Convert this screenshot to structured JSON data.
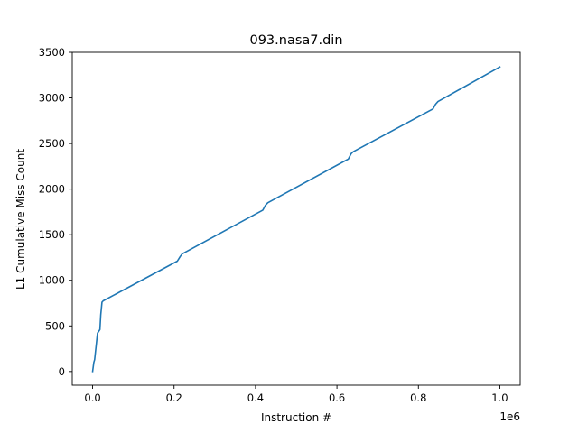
{
  "chart_data": {
    "type": "line",
    "title": "093.nasa7.din",
    "xlabel": "Instruction #",
    "ylabel": "L1 Cumulative Miss Count",
    "x_offset_label": "1e6",
    "xlim": [
      -50000,
      1050000
    ],
    "ylim": [
      -150,
      3500
    ],
    "x_ticks": [
      0,
      200000,
      400000,
      600000,
      800000,
      1000000
    ],
    "x_tick_labels": [
      "0.0",
      "0.2",
      "0.4",
      "0.6",
      "0.8",
      "1.0"
    ],
    "y_ticks": [
      0,
      500,
      1000,
      1500,
      2000,
      2500,
      3000,
      3500
    ],
    "y_tick_labels": [
      "0",
      "500",
      "1000",
      "1500",
      "2000",
      "2500",
      "3000",
      "3500"
    ],
    "grid": false,
    "series": [
      {
        "color": "#1f77b4",
        "x": [
          0,
          3000,
          5000,
          12000,
          18000,
          20000,
          23000,
          26000,
          208000,
          215000,
          220000,
          418000,
          424000,
          430000,
          628000,
          635000,
          640000,
          836000,
          842000,
          848000,
          1000000
        ],
        "y": [
          0,
          100,
          130,
          420,
          460,
          620,
          760,
          775,
          1210,
          1260,
          1290,
          1770,
          1820,
          1850,
          2330,
          2390,
          2410,
          2880,
          2930,
          2960,
          3340
        ]
      }
    ]
  }
}
